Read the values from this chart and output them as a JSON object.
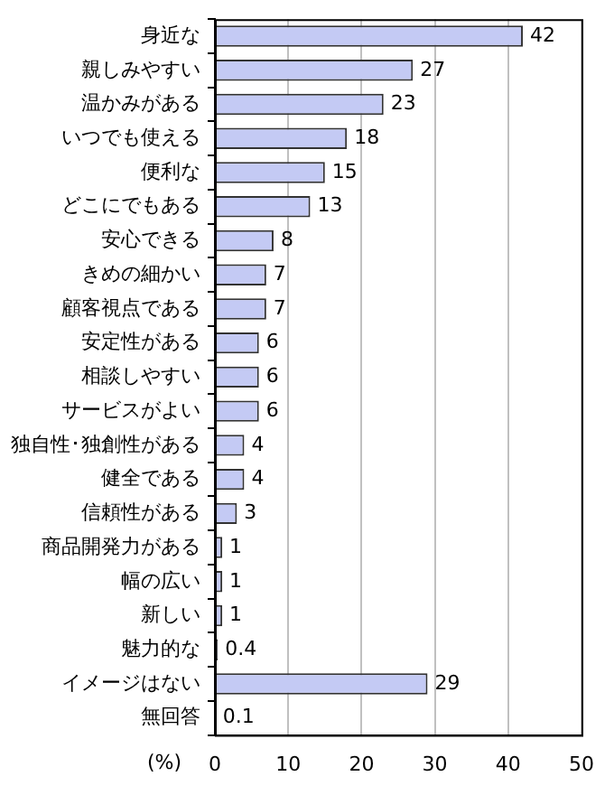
{
  "chart_data": {
    "type": "bar",
    "orientation": "horizontal",
    "xlabel": "(%)",
    "categories": [
      "身近な",
      "親しみやすい",
      "温かみがある",
      "いつでも使える",
      "便利な",
      "どこにでもある",
      "安心できる",
      "きめの細かい",
      "顧客視点である",
      "安定性がある",
      "相談しやすい",
      "サービスがよい",
      "独自性･独創性がある",
      "健全である",
      "信頼性がある",
      "商品開発力がある",
      "幅の広い",
      "新しい",
      "魅力的な",
      "イメージはない",
      "無回答"
    ],
    "values": [
      42,
      27,
      23,
      18,
      15,
      13,
      8,
      7,
      7,
      6,
      6,
      6,
      4,
      4,
      3,
      1,
      1,
      1,
      0.4,
      29,
      0.1
    ],
    "color": "#c4caf4",
    "xlim": [
      0,
      50
    ],
    "xticks": [
      0,
      10,
      20,
      30,
      40,
      50
    ],
    "grid": "x",
    "data_labels": true,
    "legend": false
  }
}
